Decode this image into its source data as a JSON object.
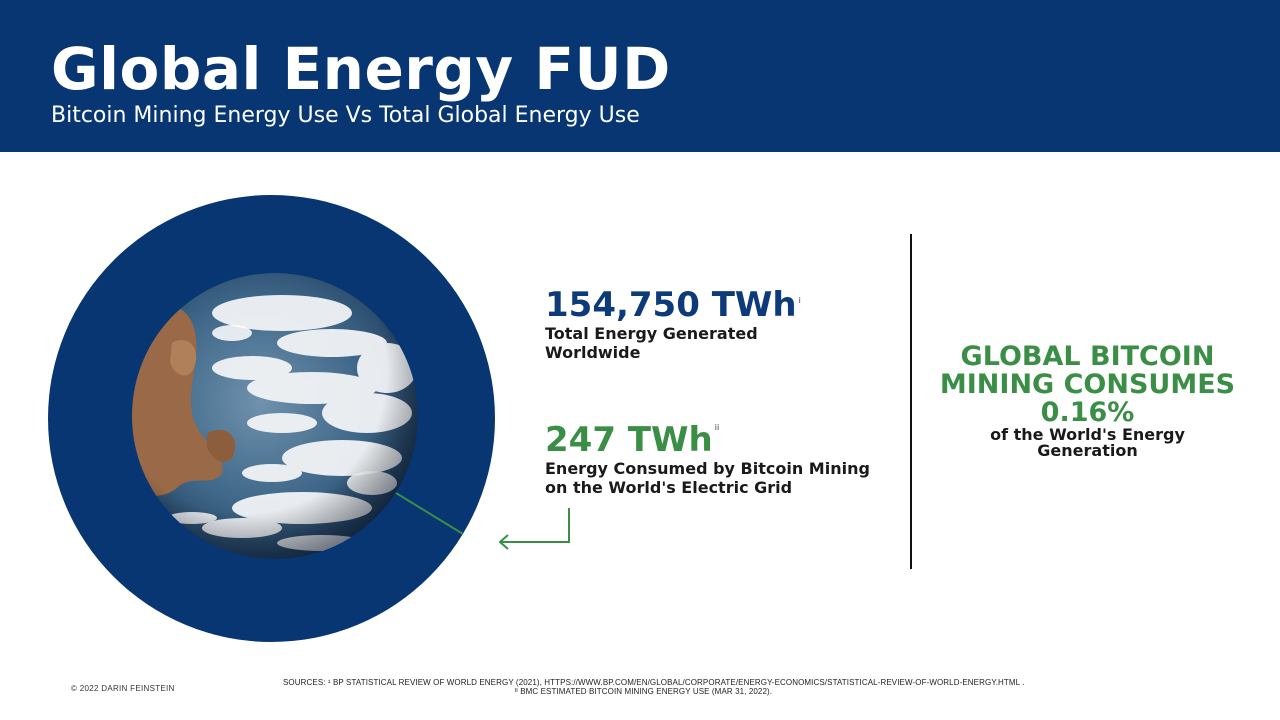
{
  "header": {
    "title": "Global Energy FUD",
    "subtitle": "Bitcoin Mining Energy Use Vs Total Global Energy Use"
  },
  "stats": {
    "total": {
      "value": "154,750 TWh",
      "note": "i",
      "description": "Total Energy Generated\nWorldwide",
      "color": "#0d3a78"
    },
    "bitcoin": {
      "value": "247 TWh",
      "note": "ii",
      "description": "Energy Consumed by Bitcoin Mining\non the World's Electric Grid",
      "color": "#3b8e45"
    }
  },
  "headline": {
    "main": "GLOBAL BITCOIN\nMINING CONSUMES",
    "percent": "0.16%",
    "sub": "of the World's Energy\nGeneration"
  },
  "footer": {
    "copyright": "© 2022 DARIN FEINSTEIN",
    "source_1": "SOURCES: ¹ BP STATISTICAL REVIEW OF WORLD ENERGY (2021), HTTPS://WWW.BP.COM/EN/GLOBAL/CORPORATE/ENERGY-ECONOMICS/STATISTICAL-REVIEW-OF-WORLD-ENERGY.HTML .",
    "source_2": "ᴵᴵ BMC ESTIMATED BITCOIN MINING ENERGY USE (MAR 31, 2022)."
  },
  "colors": {
    "navy": "#073673",
    "green": "#3b8e45"
  },
  "icons": {
    "earth": "earth-globe-icon",
    "arrow": "left-arrow-icon"
  }
}
